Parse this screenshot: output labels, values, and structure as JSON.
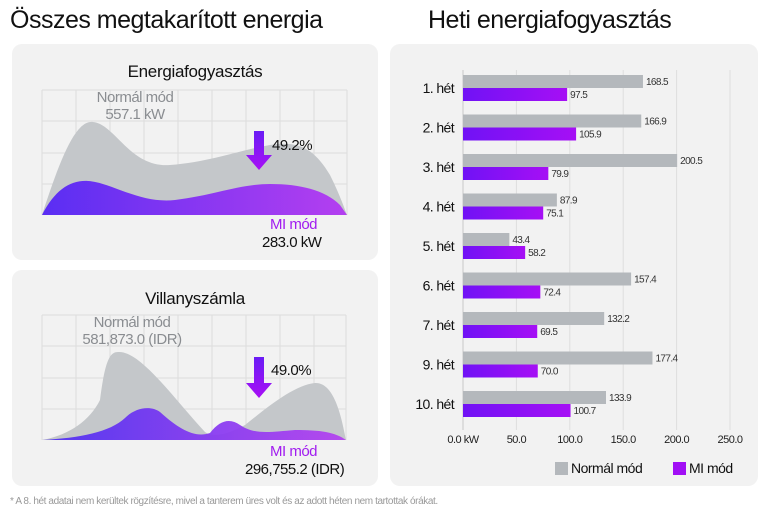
{
  "left_title": "Összes megtakarított energia",
  "right_title": "Heti energiafogyasztás",
  "energy_panel": {
    "title": "Energiafogyasztás",
    "normal_label": "Normál mód",
    "normal_value": "557.1 kW",
    "reduction": "49.2%",
    "ai_label": "MI mód",
    "ai_value": "283.0 kW"
  },
  "bill_panel": {
    "title": "Villanyszámla",
    "normal_label": "Normál mód",
    "normal_value": "581,873.0 (IDR)",
    "reduction": "49.0%",
    "ai_label": "MI mód",
    "ai_value": "296,755.2 (IDR)"
  },
  "colors": {
    "normal": "#b4b8bc",
    "ai_start": "#6a1cf5",
    "ai_end": "#a80ff5",
    "panel": "#f2f2f2"
  },
  "chart_data": {
    "type": "bar",
    "orientation": "horizontal",
    "categories": [
      "1. hét",
      "2. hét",
      "3. hét",
      "4. hét",
      "5. hét",
      "6. hét",
      "7. hét",
      "9. hét",
      "10. hét"
    ],
    "series": [
      {
        "name": "Normál mód",
        "values": [
          168.5,
          166.9,
          200.5,
          87.9,
          43.4,
          157.4,
          132.2,
          177.4,
          133.9
        ],
        "labels": [
          "168.5",
          "166.9",
          "200.5",
          "87.9",
          "43.4",
          "157.4",
          "132.2",
          "177.4",
          "133.9"
        ]
      },
      {
        "name": "MI mód",
        "values": [
          97.5,
          105.9,
          79.9,
          75.1,
          58.2,
          72.4,
          69.5,
          70.0,
          100.7
        ],
        "labels": [
          "97.5",
          "105.9",
          "79.9",
          "75.1",
          "58.2",
          "72.4",
          "69.5",
          "70.0",
          "100.7"
        ]
      }
    ],
    "xticks": [
      "0.0 kW",
      "50.0",
      "100.0",
      "150.0",
      "200.0",
      "250.0"
    ],
    "xlim": [
      0,
      250
    ],
    "grid": true,
    "legend": "bottom-right"
  },
  "footnote": "* A 8. hét adatai nem kerültek rögzítésre, mivel a tanterem üres volt és az adott héten nem tartottak órákat."
}
